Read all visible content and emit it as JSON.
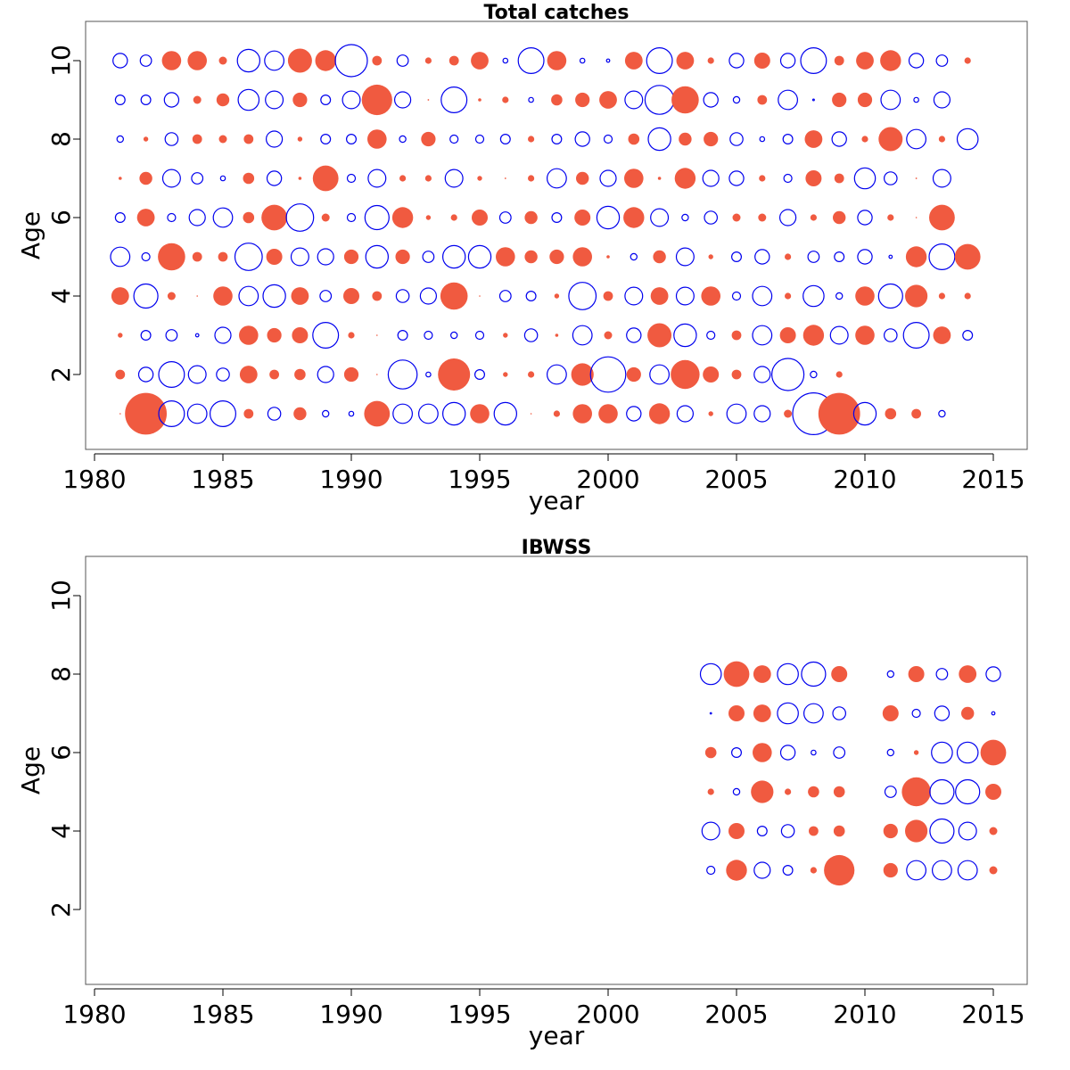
{
  "colors": {
    "positive": "#f05a40",
    "negative": "#0000ee"
  },
  "chart_data": [
    {
      "type": "bubble",
      "title": "Total catches",
      "xlabel": "year",
      "ylabel": "Age",
      "xlim": [
        1980,
        2015
      ],
      "ylim": [
        0,
        11
      ],
      "xticks": [
        1980,
        1985,
        1990,
        1995,
        2000,
        2005,
        2010,
        2015
      ],
      "yticks": [
        2,
        4,
        6,
        8,
        10
      ],
      "grid": false,
      "ages": [
        1,
        2,
        3,
        4,
        5,
        6,
        7,
        8,
        9,
        10
      ],
      "legend": "none",
      "note": "bubble size = absolute residual; filled = positive, open = negative",
      "rows": {
        "1": [
          0.05,
          2.6,
          -1.6,
          -1.2,
          -1.6,
          0.6,
          -0.8,
          0.8,
          -0.4,
          -0.3,
          1.6,
          -1.2,
          -1.2,
          -1.4,
          1.2,
          -1.4,
          0.05,
          0.4,
          1.2,
          1.2,
          -0.9,
          1.3,
          -1.0,
          0.3,
          -1.2,
          -1.0,
          0.5,
          -2.6,
          2.6,
          -1.4,
          0.7,
          0.6,
          -0.4
        ],
        "2": [
          0.6,
          -0.9,
          -1.6,
          -1.1,
          -0.8,
          1.1,
          0.6,
          0.7,
          -1.0,
          0.9,
          0.05,
          -1.8,
          -0.3,
          2.0,
          -0.6,
          0.3,
          0.4,
          -1.2,
          1.4,
          -2.2,
          0.9,
          -1.2,
          1.8,
          1.0,
          0.6,
          -1.0,
          -2.0,
          -0.4,
          0.4
        ],
        "3": [
          0.3,
          -0.6,
          -0.7,
          -0.2,
          -1.0,
          1.2,
          0.9,
          1.0,
          -1.6,
          0.4,
          0.05,
          -0.6,
          -0.5,
          -0.4,
          -0.5,
          0.3,
          -0.8,
          0.2,
          -1.2,
          0.5,
          -0.9,
          1.5,
          -1.4,
          -0.5,
          0.6,
          -1.2,
          1.0,
          1.3,
          -1.1,
          1.2,
          -0.8,
          -1.6,
          1.1,
          -0.6
        ],
        "4": [
          1.1,
          -1.5,
          0.5,
          0.05,
          1.2,
          -1.2,
          -1.4,
          1.1,
          -0.7,
          1.0,
          0.6,
          -0.8,
          -1.0,
          1.7,
          0.05,
          -0.7,
          -0.6,
          0.3,
          -1.7,
          0.6,
          -1.1,
          1.1,
          -1.1,
          1.2,
          -0.5,
          -1.2,
          0.4,
          -1.3,
          -0.4,
          1.2,
          -1.5,
          1.4,
          0.4,
          0.4
        ],
        "5": [
          -1.2,
          -0.5,
          1.7,
          0.6,
          0.6,
          -1.7,
          1.0,
          -1.1,
          -1.0,
          0.9,
          -1.4,
          0.9,
          -0.7,
          -1.4,
          -1.4,
          1.2,
          0.8,
          0.9,
          1.2,
          0.2,
          -0.4,
          0.8,
          -1.1,
          0.3,
          -0.6,
          -0.9,
          0.4,
          -0.7,
          -0.6,
          -0.9,
          -0.2,
          1.3,
          -1.6,
          1.6
        ],
        "6": [
          -0.6,
          1.1,
          -0.5,
          -1.0,
          -1.2,
          0.7,
          1.6,
          -1.7,
          0.5,
          -0.5,
          -1.5,
          1.3,
          0.3,
          0.4,
          1.0,
          -0.7,
          0.8,
          -0.6,
          1.0,
          -1.4,
          1.3,
          -1.1,
          -0.4,
          -0.8,
          0.5,
          0.5,
          -1.0,
          0.4,
          0.8,
          -0.9,
          0.4,
          0.05,
          1.6
        ],
        "7": [
          0.2,
          0.8,
          -1.1,
          -0.7,
          -0.3,
          0.7,
          -0.9,
          0.2,
          1.6,
          -0.5,
          -1.1,
          0.4,
          0.4,
          -1.1,
          0.3,
          0.1,
          0.4,
          -1.2,
          0.8,
          -1.0,
          1.2,
          0.2,
          1.3,
          -1.0,
          -0.9,
          0.4,
          -0.5,
          1.0,
          0.6,
          -1.3,
          -0.8,
          0.1,
          -1.1
        ],
        "8": [
          -0.4,
          0.3,
          -0.8,
          0.6,
          0.5,
          0.6,
          -1.0,
          0.3,
          -0.6,
          -0.6,
          1.2,
          -0.4,
          0.9,
          -0.5,
          -0.5,
          -0.6,
          0.4,
          -0.6,
          -0.9,
          -0.5,
          0.7,
          -1.4,
          0.8,
          0.9,
          -0.8,
          -0.3,
          -0.6,
          1.1,
          -0.9,
          0.4,
          1.5,
          -1.2,
          0.4,
          -1.3
        ],
        "9": [
          -0.6,
          -0.6,
          -0.9,
          0.5,
          0.8,
          -1.3,
          -1.1,
          0.9,
          -0.6,
          -1.1,
          1.9,
          -1.0,
          0.1,
          -1.6,
          0.2,
          0.4,
          -0.3,
          0.7,
          0.9,
          1.1,
          -1.1,
          -1.8,
          1.7,
          -0.9,
          -0.4,
          0.6,
          -1.2,
          -0.1,
          0.9,
          0.9,
          -1.2,
          -0.3,
          -1.0
        ],
        "10": [
          -0.9,
          -0.7,
          1.2,
          1.2,
          0.5,
          -1.4,
          -1.2,
          1.5,
          1.3,
          -2.0,
          0.6,
          -0.7,
          0.4,
          0.6,
          1.1,
          -0.3,
          -1.6,
          1.2,
          -0.3,
          -0.2,
          1.1,
          -1.6,
          1.1,
          0.4,
          -0.9,
          1.0,
          -0.9,
          -1.6,
          0.6,
          1.1,
          1.3,
          -0.9,
          -0.7,
          0.4
        ]
      },
      "start_year": 1981
    },
    {
      "type": "bubble",
      "title": "IBWSS",
      "xlabel": "year",
      "ylabel": "Age",
      "xlim": [
        1980,
        2015
      ],
      "ylim": [
        0,
        11
      ],
      "xticks": [
        1980,
        1985,
        1990,
        1995,
        2000,
        2005,
        2010,
        2015
      ],
      "yticks": [
        2,
        4,
        6,
        8,
        10
      ],
      "grid": false,
      "legend": "none",
      "years": [
        2004,
        2005,
        2006,
        2007,
        2008,
        2009,
        2011,
        2012,
        2013,
        2014,
        2015
      ],
      "rows": {
        "3": [
          -0.5,
          1.3,
          -1.0,
          -0.6,
          0.4,
          1.9,
          0.9,
          -1.2,
          -1.2,
          -1.2,
          0.5
        ],
        "4": [
          -1.1,
          1.0,
          -0.6,
          -0.8,
          0.6,
          0.7,
          0.9,
          1.4,
          -1.5,
          -1.1,
          0.5
        ],
        "5": [
          0.4,
          -0.4,
          1.4,
          0.4,
          0.7,
          0.7,
          -0.7,
          1.8,
          -1.5,
          -1.5,
          1.0
        ],
        "6": [
          0.7,
          -0.6,
          1.2,
          -0.9,
          -0.3,
          -0.7,
          -0.4,
          0.3,
          -1.3,
          -1.3,
          1.6
        ],
        "7": [
          -0.05,
          1.0,
          1.1,
          -1.3,
          -1.2,
          -0.8,
          1.0,
          -0.5,
          -0.9,
          0.8,
          -0.2
        ],
        "8": [
          -1.3,
          1.6,
          1.1,
          -1.3,
          -1.5,
          1.0,
          -0.4,
          1.0,
          -0.7,
          1.1,
          -0.9
        ]
      }
    }
  ]
}
